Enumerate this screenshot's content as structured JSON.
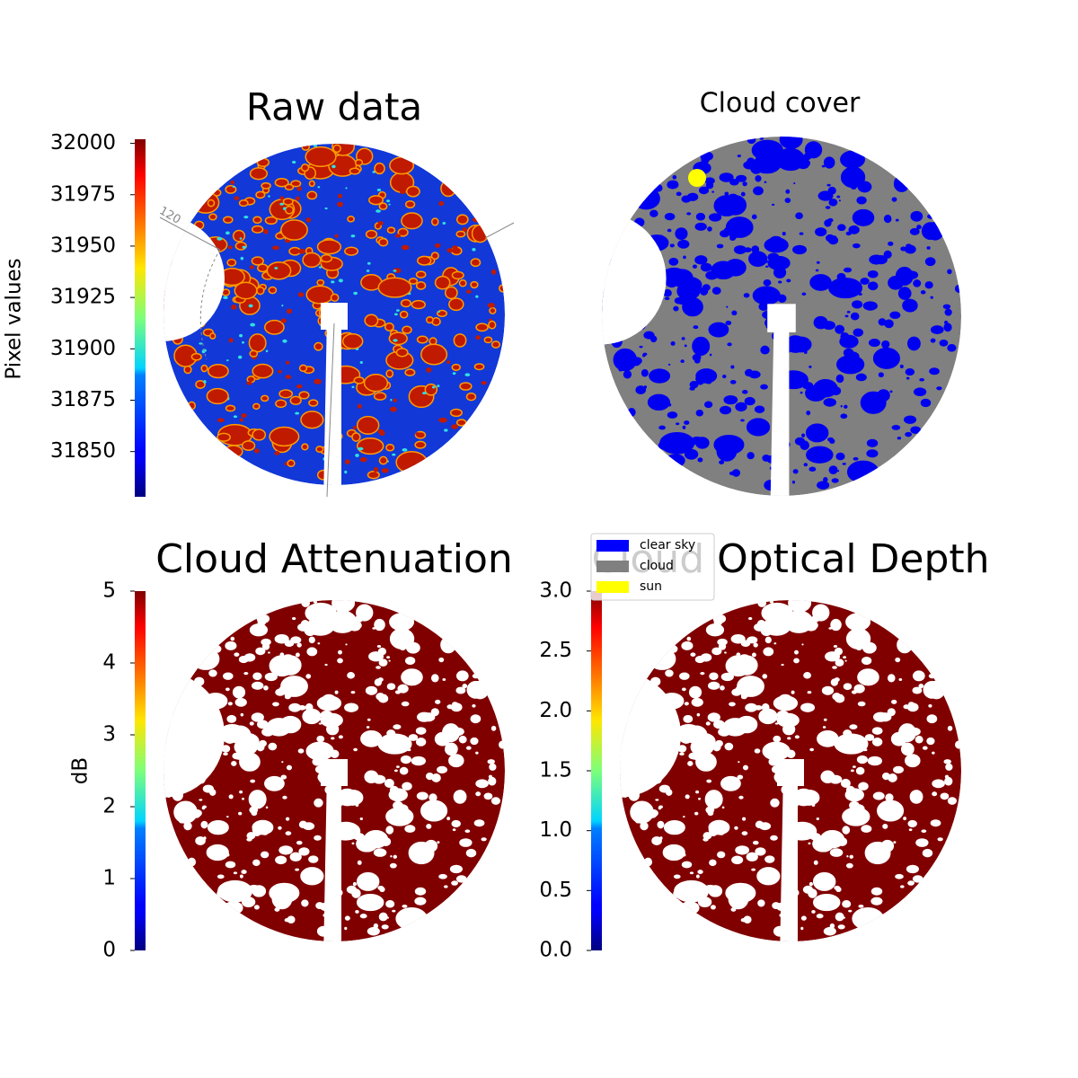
{
  "chart_data": [
    {
      "type": "image",
      "title": "Raw data",
      "annotation": "120",
      "colorbar": {
        "label": "Pixel values",
        "cmap": "jet",
        "lim": [
          31828,
          32002
        ],
        "ticks": [
          31850,
          31875,
          31900,
          31925,
          31950,
          31975,
          32000
        ]
      }
    },
    {
      "type": "image",
      "title": "Cloud cover",
      "legend": [
        {
          "name": "clear sky",
          "color": "#0000ff"
        },
        {
          "name": "cloud",
          "color": "#808080"
        },
        {
          "name": "sun",
          "color": "#ffff00"
        }
      ]
    },
    {
      "type": "image",
      "title": "Cloud Attenuation",
      "colorbar": {
        "label": "dB",
        "cmap": "jet",
        "lim": [
          0,
          5
        ],
        "ticks": [
          0,
          1,
          2,
          3,
          4,
          5
        ]
      }
    },
    {
      "type": "image",
      "title": "Cloud Optical Depth",
      "colorbar": {
        "cmap": "jet",
        "lim": [
          0,
          3
        ],
        "ticks": [
          {
            "value": 0,
            "label": "0.0"
          },
          {
            "value": 0.5,
            "label": "0.5"
          },
          {
            "value": 1,
            "label": "1.0"
          },
          {
            "value": 1.5,
            "label": "1.5"
          },
          {
            "value": 2,
            "label": "2.0"
          },
          {
            "value": 2.5,
            "label": "2.5"
          },
          {
            "value": 3,
            "label": "3.0"
          }
        ]
      }
    }
  ]
}
